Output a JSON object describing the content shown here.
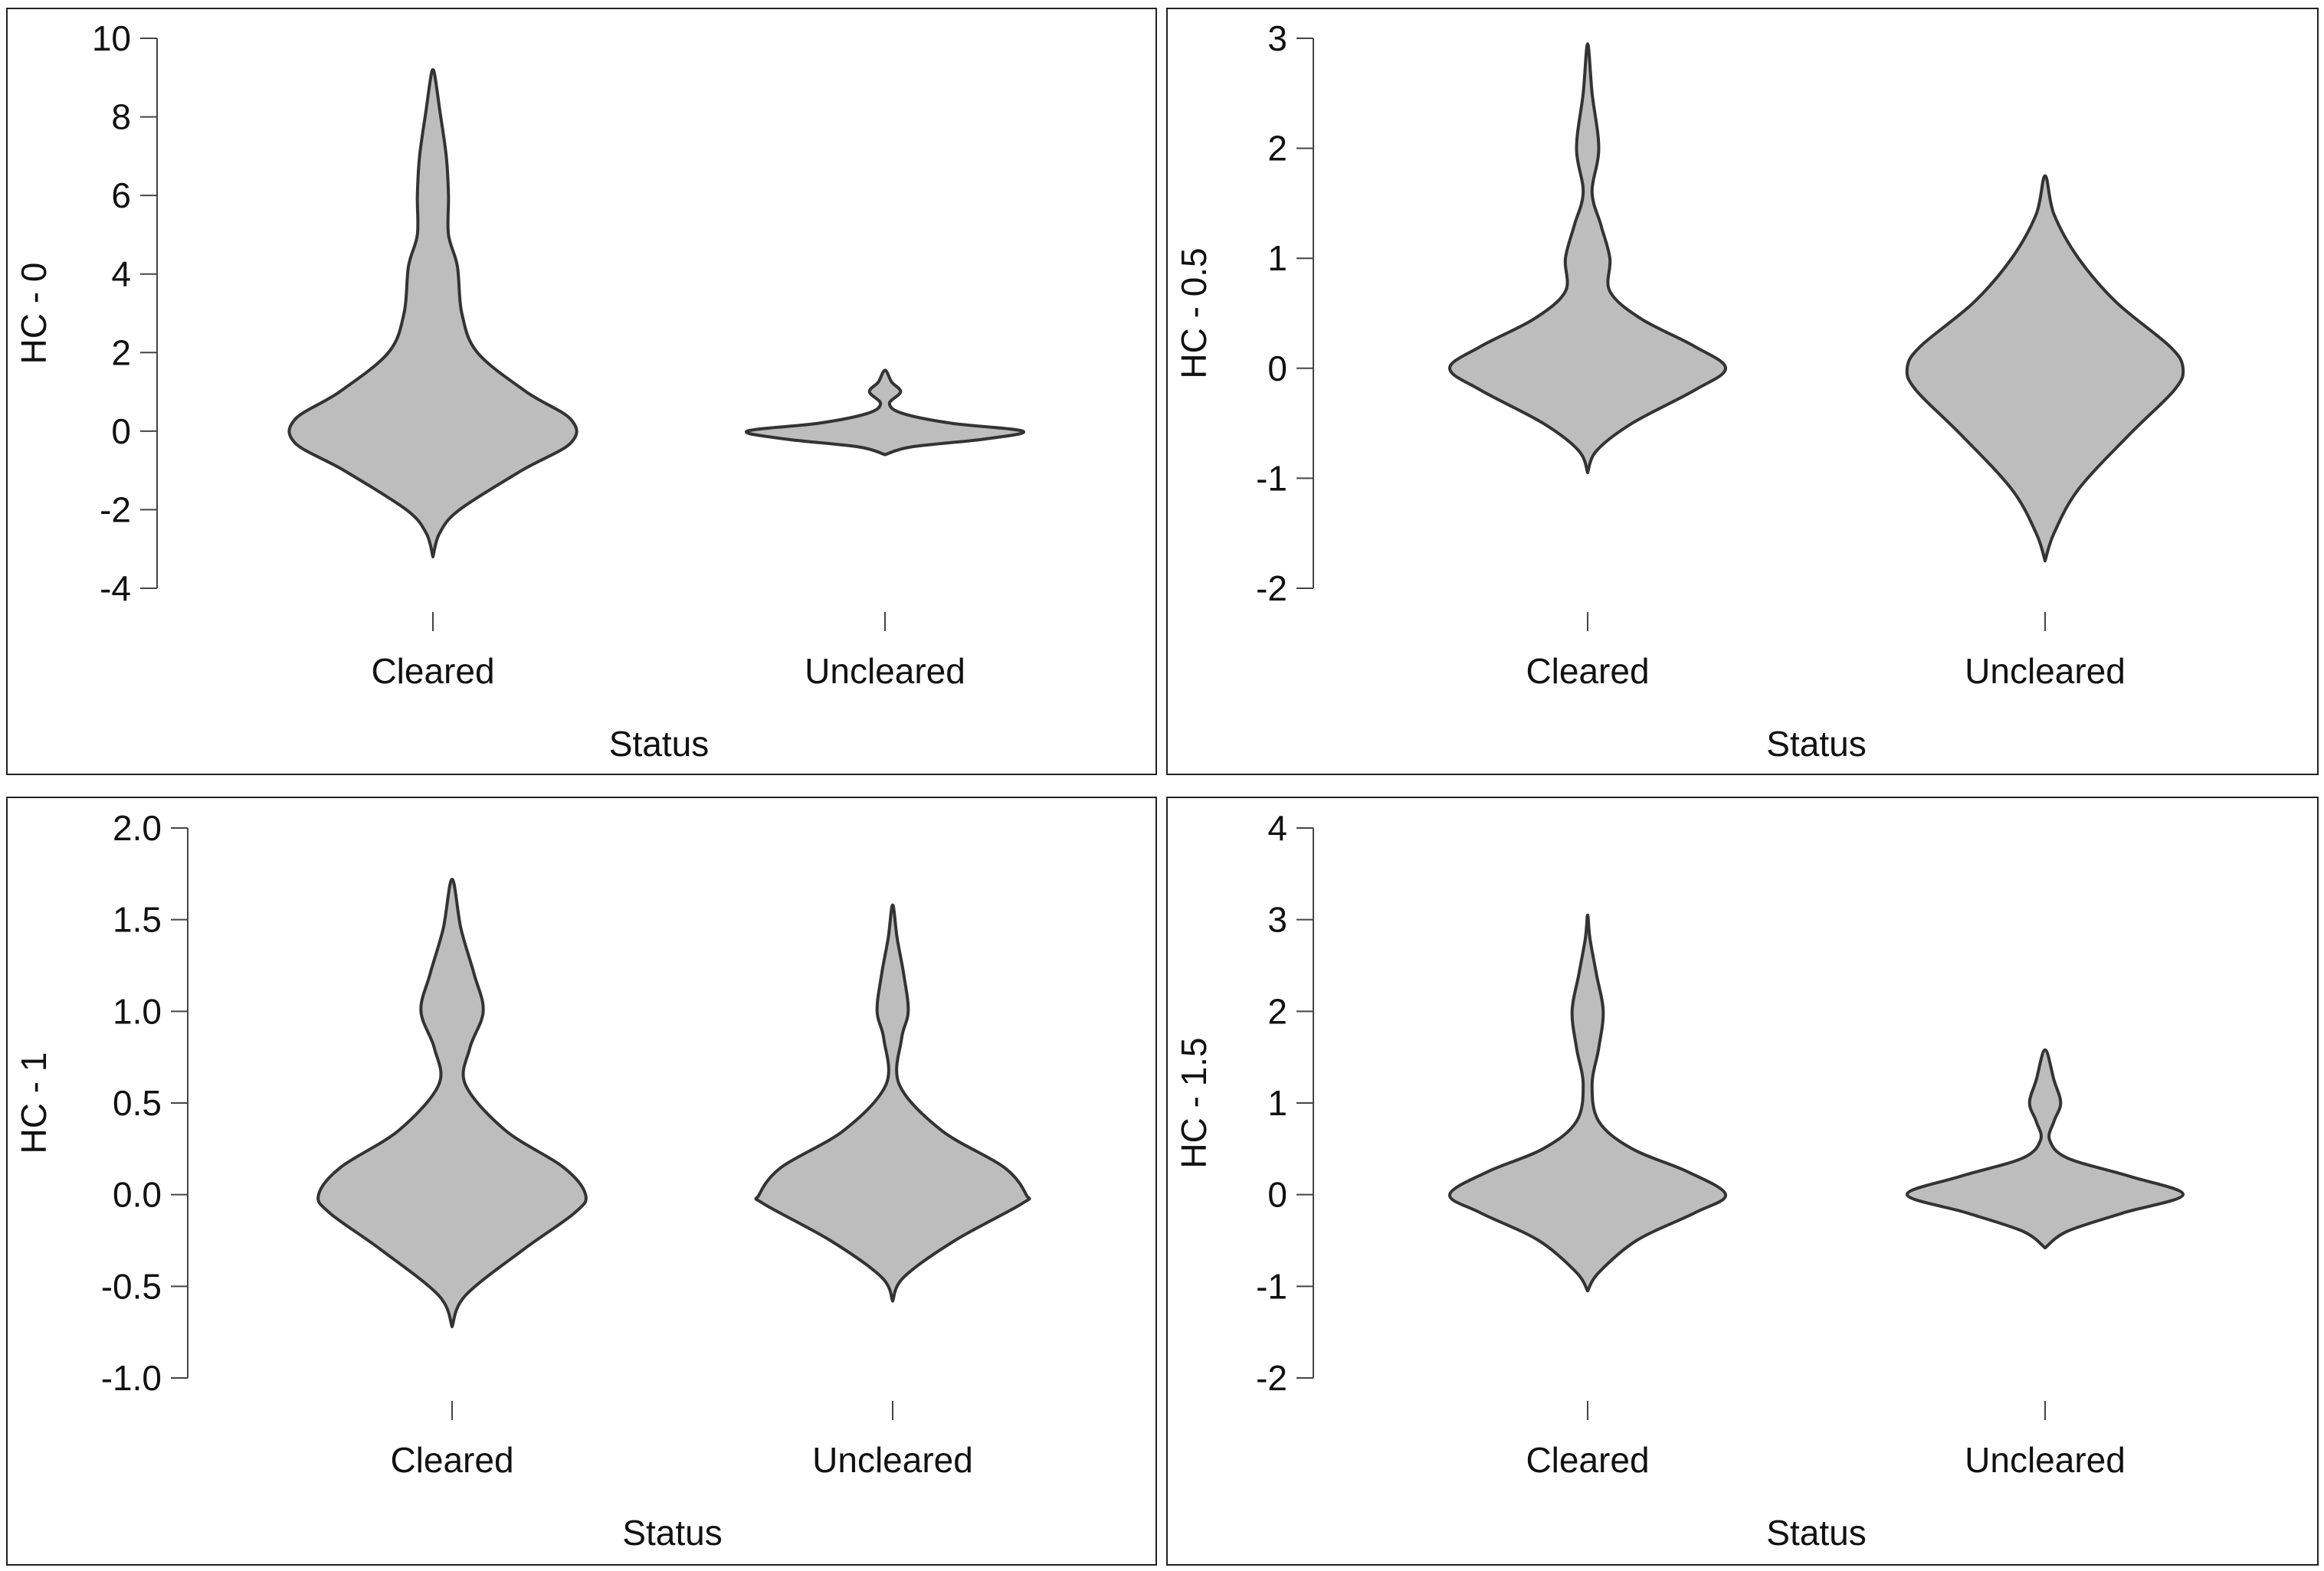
{
  "chart_data": [
    {
      "type": "violin",
      "categories": [
        "Cleared",
        "Uncleared"
      ],
      "xlabel": "Status",
      "ylabel": "HC - 0",
      "ylim": [
        -4,
        10
      ],
      "yticks": [
        "-4",
        "-2",
        "0",
        "2",
        "4",
        "6",
        "8",
        "10"
      ],
      "fill_color": "#bdbdbd",
      "stroke_color": "#333333",
      "violins": [
        {
          "category": "Cleared",
          "min": -3.2,
          "max": 9.2,
          "profile": [
            [
              -3.2,
              0
            ],
            [
              -2.6,
              0.03
            ],
            [
              -2.0,
              0.12
            ],
            [
              -1.0,
              0.4
            ],
            [
              -0.3,
              0.62
            ],
            [
              0.3,
              0.62
            ],
            [
              1.0,
              0.42
            ],
            [
              2.0,
              0.2
            ],
            [
              3.0,
              0.13
            ],
            [
              4.2,
              0.11
            ],
            [
              5.0,
              0.07
            ],
            [
              6.0,
              0.07
            ],
            [
              7.0,
              0.06
            ],
            [
              8.2,
              0.03
            ],
            [
              9.0,
              0.01
            ],
            [
              9.2,
              0
            ]
          ]
        },
        {
          "category": "Uncleared",
          "min": -0.6,
          "max": 1.55,
          "profile": [
            [
              -0.6,
              0
            ],
            [
              -0.4,
              0.12
            ],
            [
              -0.2,
              0.45
            ],
            [
              0,
              0.62
            ],
            [
              0.2,
              0.3
            ],
            [
              0.45,
              0.08
            ],
            [
              0.7,
              0.02
            ],
            [
              1.0,
              0.07
            ],
            [
              1.25,
              0.03
            ],
            [
              1.55,
              0
            ]
          ]
        }
      ]
    },
    {
      "type": "violin",
      "categories": [
        "Cleared",
        "Uncleared"
      ],
      "xlabel": "Status",
      "ylabel": "HC - 0.5",
      "ylim": [
        -2,
        3
      ],
      "yticks": [
        "-2",
        "-1",
        "0",
        "1",
        "2",
        "3"
      ],
      "fill_color": "#bdbdbd",
      "stroke_color": "#333333",
      "violins": [
        {
          "category": "Cleared",
          "min": -0.95,
          "max": 2.95,
          "profile": [
            [
              -0.95,
              0
            ],
            [
              -0.75,
              0.04
            ],
            [
              -0.5,
              0.2
            ],
            [
              -0.2,
              0.48
            ],
            [
              0,
              0.62
            ],
            [
              0.2,
              0.48
            ],
            [
              0.45,
              0.24
            ],
            [
              0.7,
              0.1
            ],
            [
              1.0,
              0.1
            ],
            [
              1.3,
              0.06
            ],
            [
              1.6,
              0.02
            ],
            [
              2.0,
              0.05
            ],
            [
              2.5,
              0.02
            ],
            [
              2.95,
              0
            ]
          ]
        },
        {
          "category": "Uncleared",
          "min": -1.75,
          "max": 1.75,
          "profile": [
            [
              -1.75,
              0
            ],
            [
              -1.5,
              0.04
            ],
            [
              -1.1,
              0.15
            ],
            [
              -0.6,
              0.38
            ],
            [
              -0.2,
              0.58
            ],
            [
              0,
              0.62
            ],
            [
              0.2,
              0.56
            ],
            [
              0.6,
              0.32
            ],
            [
              1.0,
              0.15
            ],
            [
              1.4,
              0.04
            ],
            [
              1.75,
              0
            ]
          ]
        }
      ]
    },
    {
      "type": "violin",
      "categories": [
        "Cleared",
        "Uncleared"
      ],
      "xlabel": "Status",
      "ylabel": "HC - 1",
      "ylim": [
        -1.0,
        2.0
      ],
      "yticks": [
        "-1.0",
        "-0.5",
        "0.0",
        "0.5",
        "1.0",
        "1.5",
        "2.0"
      ],
      "fill_color": "#bdbdbd",
      "stroke_color": "#333333",
      "violins": [
        {
          "category": "Cleared",
          "min": -0.72,
          "max": 1.72,
          "profile": [
            [
              -0.72,
              0
            ],
            [
              -0.55,
              0.06
            ],
            [
              -0.3,
              0.32
            ],
            [
              -0.1,
              0.55
            ],
            [
              0,
              0.6
            ],
            [
              0.15,
              0.5
            ],
            [
              0.35,
              0.24
            ],
            [
              0.6,
              0.06
            ],
            [
              0.8,
              0.08
            ],
            [
              1.0,
              0.14
            ],
            [
              1.2,
              0.1
            ],
            [
              1.45,
              0.04
            ],
            [
              1.72,
              0
            ]
          ]
        },
        {
          "category": "Uncleared",
          "min": -0.58,
          "max": 1.58,
          "profile": [
            [
              -0.58,
              0
            ],
            [
              -0.45,
              0.05
            ],
            [
              -0.25,
              0.28
            ],
            [
              -0.05,
              0.58
            ],
            [
              0,
              0.6
            ],
            [
              0.15,
              0.5
            ],
            [
              0.35,
              0.22
            ],
            [
              0.6,
              0.03
            ],
            [
              0.85,
              0.04
            ],
            [
              1.0,
              0.07
            ],
            [
              1.2,
              0.05
            ],
            [
              1.4,
              0.02
            ],
            [
              1.58,
              0
            ]
          ]
        }
      ]
    },
    {
      "type": "violin",
      "categories": [
        "Cleared",
        "Uncleared"
      ],
      "xlabel": "Status",
      "ylabel": "HC - 1.5",
      "ylim": [
        -2,
        4
      ],
      "yticks": [
        "-2",
        "-1",
        "0",
        "1",
        "2",
        "3",
        "4"
      ],
      "fill_color": "#bdbdbd",
      "stroke_color": "#333333",
      "violins": [
        {
          "category": "Cleared",
          "min": -1.05,
          "max": 3.05,
          "profile": [
            [
              -1.05,
              0
            ],
            [
              -0.85,
              0.05
            ],
            [
              -0.5,
              0.22
            ],
            [
              -0.2,
              0.48
            ],
            [
              0,
              0.62
            ],
            [
              0.25,
              0.45
            ],
            [
              0.5,
              0.2
            ],
            [
              0.8,
              0.05
            ],
            [
              1.2,
              0.02
            ],
            [
              1.6,
              0.05
            ],
            [
              2.0,
              0.07
            ],
            [
              2.4,
              0.04
            ],
            [
              2.8,
              0.01
            ],
            [
              3.05,
              0
            ]
          ]
        },
        {
          "category": "Uncleared",
          "min": -0.58,
          "max": 1.58,
          "profile": [
            [
              -0.58,
              0
            ],
            [
              -0.4,
              0.1
            ],
            [
              -0.2,
              0.35
            ],
            [
              0,
              0.62
            ],
            [
              0.2,
              0.38
            ],
            [
              0.4,
              0.1
            ],
            [
              0.6,
              0.02
            ],
            [
              0.8,
              0.04
            ],
            [
              1.0,
              0.07
            ],
            [
              1.25,
              0.04
            ],
            [
              1.58,
              0
            ]
          ]
        }
      ]
    }
  ]
}
